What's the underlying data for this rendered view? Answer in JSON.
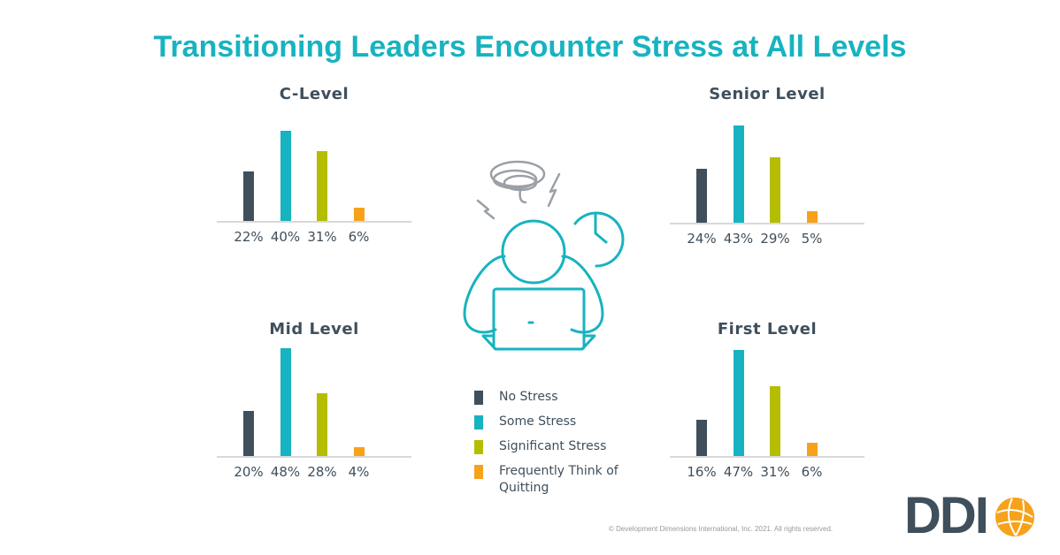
{
  "title": "Transitioning Leaders Encounter Stress at All Levels",
  "colors": {
    "no_stress": "#3f4f5c",
    "some_stress": "#17b3c0",
    "significant_stress": "#b5bd00",
    "quitting": "#f7a21b",
    "title": "#17b3c0"
  },
  "chart_data": [
    {
      "type": "bar",
      "title": "C-Level",
      "categories": [
        "No Stress",
        "Some Stress",
        "Significant Stress",
        "Frequently Think of Quitting"
      ],
      "values": [
        22,
        40,
        31,
        6
      ],
      "labels": [
        "22%",
        "40%",
        "31%",
        "6%"
      ]
    },
    {
      "type": "bar",
      "title": "Senior Level",
      "categories": [
        "No Stress",
        "Some Stress",
        "Significant Stress",
        "Frequently Think of Quitting"
      ],
      "values": [
        24,
        43,
        29,
        5
      ],
      "labels": [
        "24%",
        "43%",
        "29%",
        "5%"
      ]
    },
    {
      "type": "bar",
      "title": "Mid Level",
      "categories": [
        "No Stress",
        "Some Stress",
        "Significant Stress",
        "Frequently Think of Quitting"
      ],
      "values": [
        20,
        48,
        28,
        4
      ],
      "labels": [
        "20%",
        "48%",
        "28%",
        "4%"
      ]
    },
    {
      "type": "bar",
      "title": "First Level",
      "categories": [
        "No Stress",
        "Some Stress",
        "Significant Stress",
        "Frequently Think of Quitting"
      ],
      "values": [
        16,
        47,
        31,
        6
      ],
      "labels": [
        "16%",
        "47%",
        "31%",
        "6%"
      ]
    }
  ],
  "legend": [
    {
      "label": "No Stress",
      "color": "#3f4f5c"
    },
    {
      "label": "Some Stress",
      "color": "#17b3c0"
    },
    {
      "label": "Significant Stress",
      "color": "#b5bd00"
    },
    {
      "label": "Frequently Think of Quitting",
      "color": "#f7a21b"
    }
  ],
  "copyright": "© Development Dimensions International, Inc. 2021. All rights reserved.",
  "logo": {
    "text": "DDI"
  }
}
